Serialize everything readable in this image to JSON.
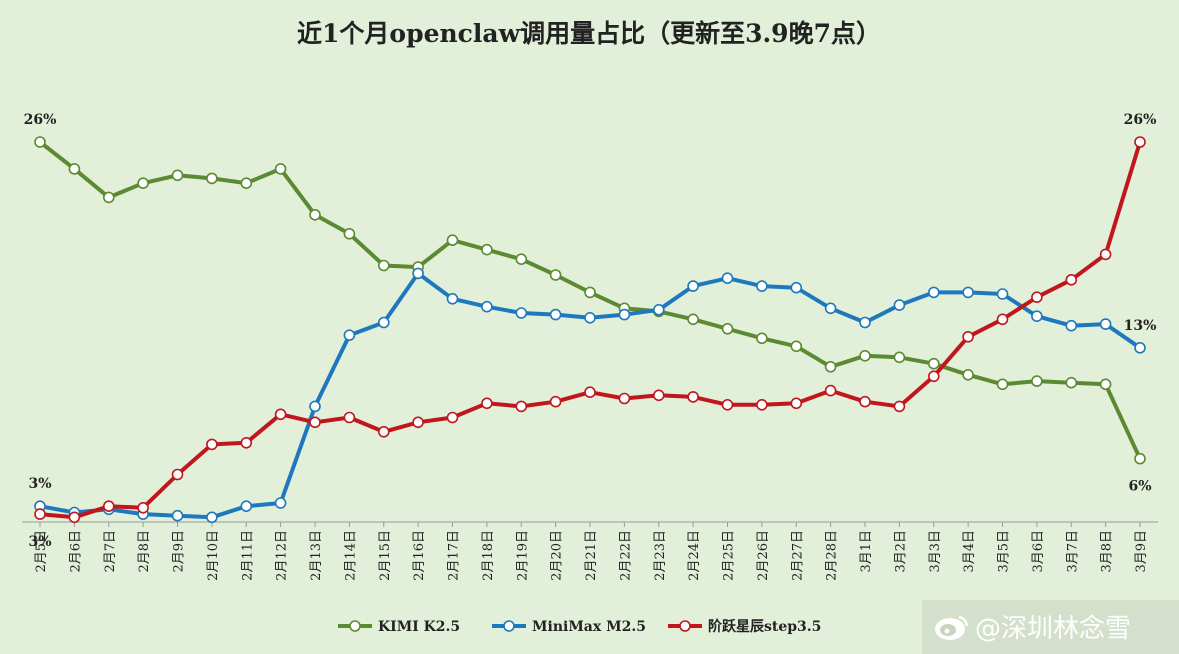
{
  "chart_data": {
    "type": "line",
    "title": "近1个月openclaw调用量占比（更新至3.9晚7点）",
    "categories": [
      "2月5日",
      "2月6日",
      "2月7日",
      "2月8日",
      "2月9日",
      "2月10日",
      "2月11日",
      "2月12日",
      "2月13日",
      "2月14日",
      "2月15日",
      "2月16日",
      "2月17日",
      "2月18日",
      "2月19日",
      "2月20日",
      "2月21日",
      "2月22日",
      "2月23日",
      "2月24日",
      "2月25日",
      "2月26日",
      "2月27日",
      "2月28日",
      "3月1日",
      "3月2日",
      "3月3日",
      "3月4日",
      "3月5日",
      "3月6日",
      "3月7日",
      "3月8日",
      "3月9日"
    ],
    "ylim": [
      2,
      27
    ],
    "grid": false,
    "legend_position": "bottom",
    "series": [
      {
        "name": "KIMI K2.5",
        "color": "#5b8a32",
        "values": [
          26.0,
          24.3,
          22.5,
          23.4,
          23.9,
          23.7,
          23.4,
          24.3,
          21.4,
          20.2,
          18.2,
          18.1,
          19.8,
          19.2,
          18.6,
          17.6,
          16.5,
          15.5,
          15.3,
          14.8,
          14.2,
          13.6,
          13.1,
          11.8,
          12.5,
          12.4,
          12.0,
          11.3,
          10.7,
          10.9,
          10.8,
          10.7,
          6.0
        ]
      },
      {
        "name": "MiniMax M2.5",
        "color": "#1e78be",
        "values": [
          3.0,
          2.6,
          2.8,
          2.5,
          2.4,
          2.3,
          3.0,
          3.2,
          9.3,
          13.8,
          14.6,
          17.7,
          16.1,
          15.6,
          15.2,
          15.1,
          14.9,
          15.1,
          15.4,
          16.9,
          17.4,
          16.9,
          16.8,
          15.5,
          14.6,
          15.7,
          16.5,
          16.5,
          16.4,
          15.0,
          14.4,
          14.5,
          13.0
        ]
      },
      {
        "name": "阶跃星辰step3.5",
        "color": "#c0161c",
        "values": [
          2.5,
          2.3,
          3.0,
          2.9,
          5.0,
          6.9,
          7.0,
          8.8,
          8.3,
          8.6,
          7.7,
          8.3,
          8.6,
          9.5,
          9.3,
          9.6,
          10.2,
          9.8,
          10.0,
          9.9,
          9.4,
          9.4,
          9.5,
          10.3,
          9.6,
          9.3,
          11.2,
          13.7,
          14.8,
          16.2,
          17.3,
          18.9,
          26.0
        ]
      }
    ],
    "annotations": [
      {
        "series": 0,
        "index": 0,
        "text": "26%",
        "placement": "above"
      },
      {
        "series": 0,
        "index": 32,
        "text": "6%",
        "placement": "below"
      },
      {
        "series": 1,
        "index": 0,
        "text": "3%",
        "placement": "above"
      },
      {
        "series": 1,
        "index": 32,
        "text": "13%",
        "placement": "above"
      },
      {
        "series": 2,
        "index": 0,
        "text": "3%",
        "placement": "below"
      },
      {
        "series": 2,
        "index": 32,
        "text": "26%",
        "placement": "above"
      }
    ]
  },
  "watermark": {
    "text": "@深圳林念雪",
    "icon": "weibo-icon"
  }
}
